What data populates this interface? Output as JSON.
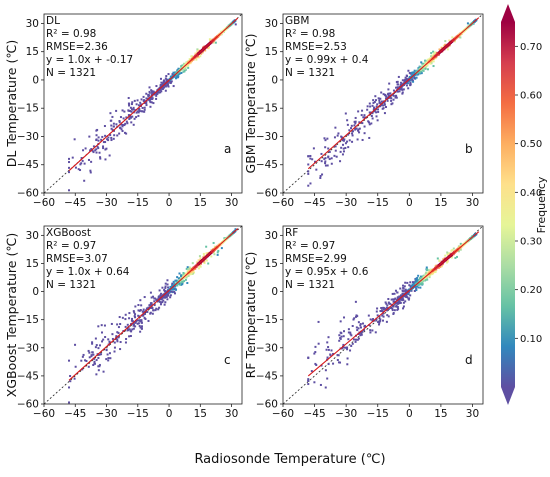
{
  "figure": {
    "shared_xlabel": "Radiosonde Temperature (℃)",
    "colorbar": {
      "label": "Frequency",
      "ticks": [
        "0.10",
        "0.20",
        "0.30",
        "0.40",
        "0.50",
        "0.60",
        "0.70"
      ],
      "tick_values": [
        0.1,
        0.2,
        0.3,
        0.4,
        0.5,
        0.6,
        0.7
      ],
      "range": [
        0.0,
        0.75
      ],
      "colors": [
        "#5e4fa2",
        "#3288bd",
        "#66c2a5",
        "#abdda4",
        "#e6f598",
        "#fee08b",
        "#fdae61",
        "#f46d43",
        "#d53e4f",
        "#9e0142"
      ]
    }
  },
  "chart_data": [
    {
      "type": "scatter",
      "model": "DL",
      "panel_letter": "a",
      "ylabel": "DL Temperature (℃)",
      "xlabel": "",
      "xlim": [
        -60,
        35
      ],
      "ylim": [
        -60,
        35
      ],
      "xticks": [
        "−60",
        "−45",
        "−30",
        "−15",
        "0",
        "15",
        "30"
      ],
      "yticks": [
        "−60",
        "−45",
        "−30",
        "−15",
        "0",
        "15",
        "30"
      ],
      "stats": [
        "DL",
        "R² = 0.98",
        "RMSE=2.36",
        "y = 1.0x + -0.17",
        "N = 1321"
      ],
      "fit": {
        "slope": 1.0,
        "intercept": -0.17,
        "x_range": [
          -48,
          33
        ]
      },
      "one_to_one_line": true,
      "n": 1321,
      "spread": 2.36
    },
    {
      "type": "scatter",
      "model": "GBM",
      "panel_letter": "b",
      "ylabel": "GBM Temperature (℃)",
      "xlabel": "",
      "xlim": [
        -60,
        35
      ],
      "ylim": [
        -60,
        35
      ],
      "xticks": [
        "−60",
        "−45",
        "−30",
        "−15",
        "0",
        "15",
        "30"
      ],
      "yticks": [
        "−60",
        "−45",
        "−30",
        "−15",
        "0",
        "15",
        "30"
      ],
      "stats": [
        "GBM",
        "R² = 0.98",
        "RMSE=2.53",
        "y = 0.99x + 0.4",
        "N = 1321"
      ],
      "fit": {
        "slope": 0.99,
        "intercept": 0.4,
        "x_range": [
          -48,
          33
        ]
      },
      "one_to_one_line": true,
      "n": 1321,
      "spread": 2.53
    },
    {
      "type": "scatter",
      "model": "XGBoost",
      "panel_letter": "c",
      "ylabel": "XGBoost Temperature (℃)",
      "xlabel": "",
      "xlim": [
        -60,
        35
      ],
      "ylim": [
        -60,
        35
      ],
      "xticks": [
        "−60",
        "−45",
        "−30",
        "−15",
        "0",
        "15",
        "30"
      ],
      "yticks": [
        "−60",
        "−45",
        "−30",
        "−15",
        "0",
        "15",
        "30"
      ],
      "stats": [
        "XGBoost",
        "R² = 0.97",
        "RMSE=3.07",
        "y = 1.0x + 0.64",
        "N = 1321"
      ],
      "fit": {
        "slope": 1.0,
        "intercept": 0.64,
        "x_range": [
          -48,
          33
        ]
      },
      "one_to_one_line": true,
      "n": 1321,
      "spread": 3.07
    },
    {
      "type": "scatter",
      "model": "RF",
      "panel_letter": "d",
      "ylabel": "RF Temperature (℃)",
      "xlabel": "",
      "xlim": [
        -60,
        35
      ],
      "ylim": [
        -60,
        35
      ],
      "xticks": [
        "−60",
        "−45",
        "−30",
        "−15",
        "0",
        "15",
        "30"
      ],
      "yticks": [
        "−60",
        "−45",
        "−30",
        "−15",
        "0",
        "15",
        "30"
      ],
      "stats": [
        "RF",
        "R² = 0.97",
        "RMSE=2.99",
        "y = 0.95x + 0.6",
        "N = 1321"
      ],
      "fit": {
        "slope": 0.95,
        "intercept": 0.6,
        "x_range": [
          -48,
          33
        ]
      },
      "one_to_one_line": true,
      "n": 1321,
      "spread": 2.99
    }
  ]
}
